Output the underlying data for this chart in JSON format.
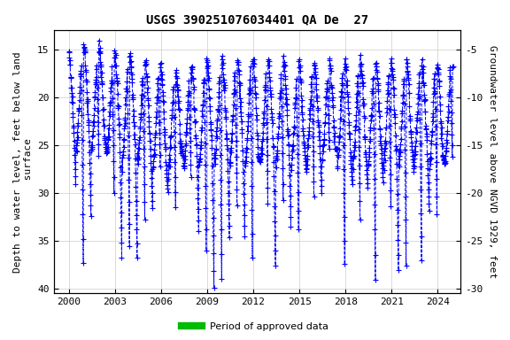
{
  "title": "USGS 390251076034401 QA De  27",
  "ylabel_left": "Depth to water level, feet below land\n surface",
  "ylabel_right": "Groundwater level above NGVD 1929, feet",
  "xlabel": "",
  "ylim_left": [
    40.5,
    13
  ],
  "ylim_right": [
    -30.5,
    -3
  ],
  "xlim": [
    1999.0,
    2025.5
  ],
  "yticks_left": [
    15,
    20,
    25,
    30,
    35,
    40
  ],
  "yticks_right": [
    -5,
    -10,
    -15,
    -20,
    -25,
    -30
  ],
  "xticks": [
    2000,
    2003,
    2006,
    2009,
    2012,
    2015,
    2018,
    2021,
    2024
  ],
  "line_color": "#0000FF",
  "line_style": "--",
  "marker": "+",
  "marker_size": 4,
  "green_bar_color": "#00BB00",
  "green_bar_y": 41.2,
  "green_bar_height": 0.9,
  "green_bar_xstart": 1999.0,
  "green_bar_xend": 2025.5,
  "legend_label": "Period of approved data",
  "background_color": "#ffffff",
  "grid_color": "#cccccc",
  "title_fontsize": 10,
  "axis_label_fontsize": 8,
  "tick_fontsize": 8
}
